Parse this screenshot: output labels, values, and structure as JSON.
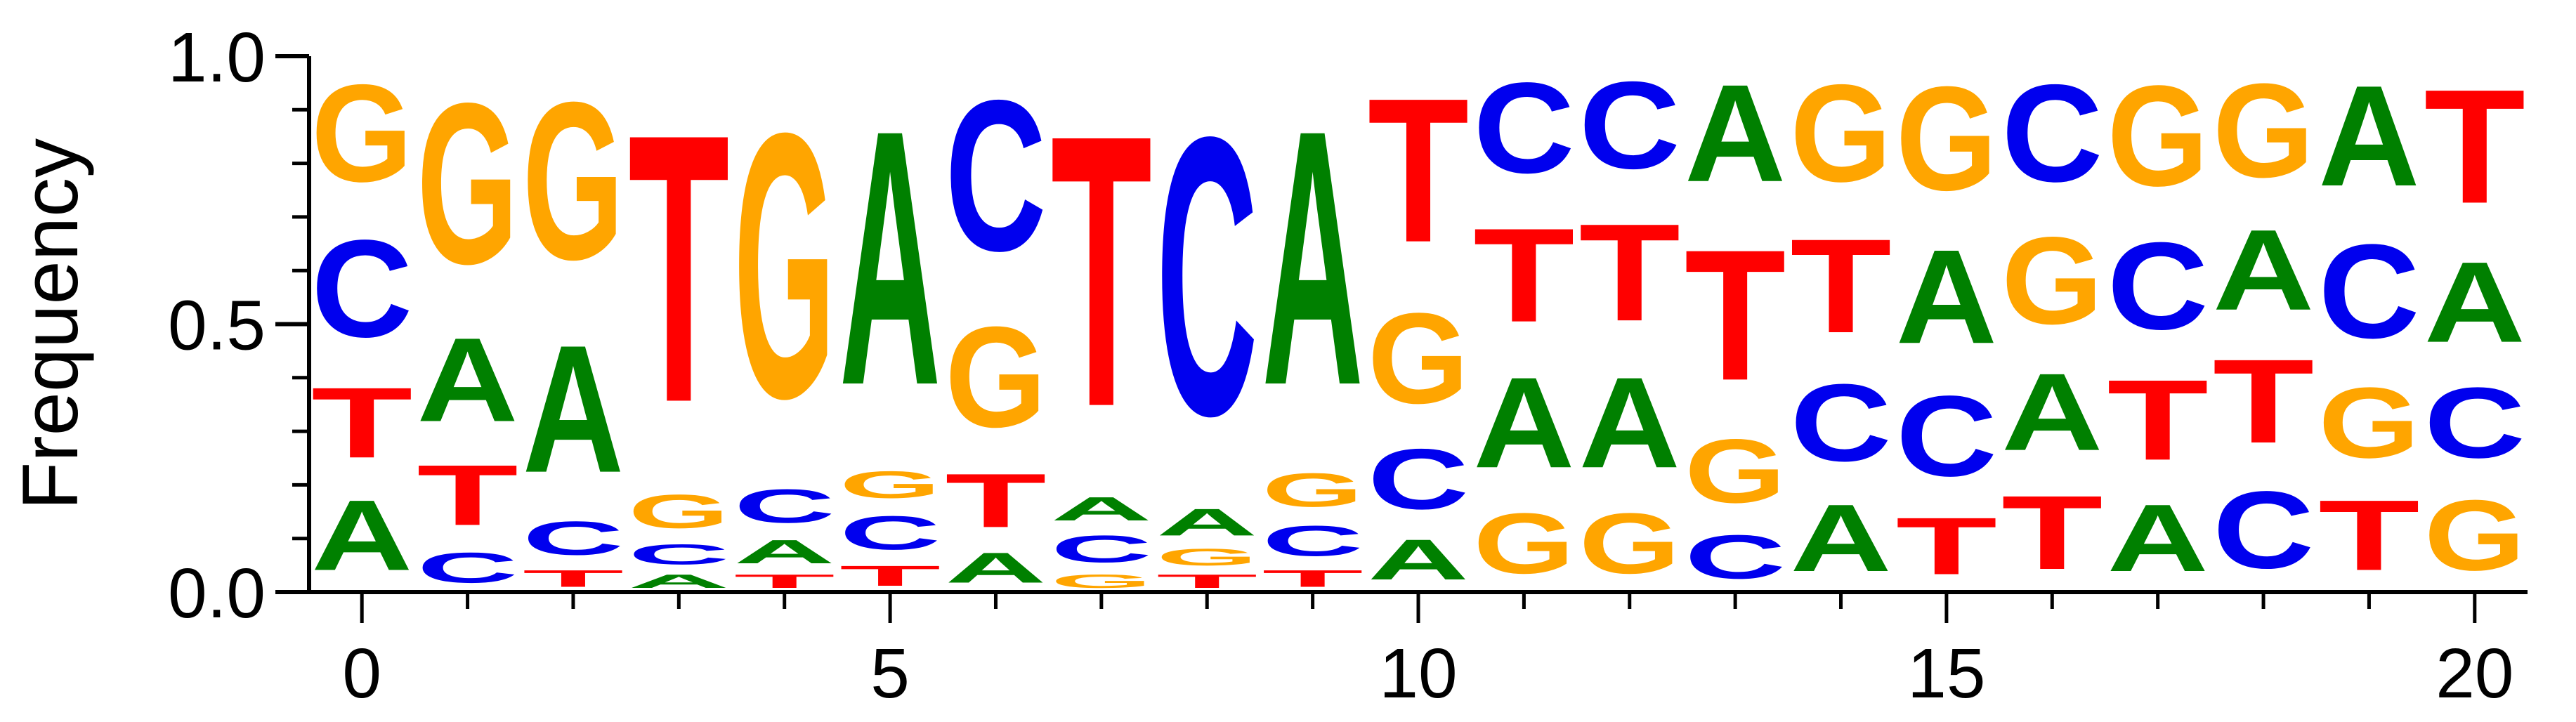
{
  "chart_data": {
    "type": "sequence-logo",
    "ylabel": "Frequency",
    "xlabel": "",
    "title": "",
    "ylim": [
      0,
      1
    ],
    "xlim": [
      -0.5,
      20.5
    ],
    "x_ticks": [
      "0",
      "5",
      "10",
      "15",
      "20"
    ],
    "x_tick_values": [
      0,
      5,
      10,
      15,
      20
    ],
    "y_ticks": [
      "0.0",
      "0.5",
      "1.0"
    ],
    "y_tick_values": [
      0,
      0.5,
      1.0
    ],
    "y_minor_ticks": [
      0.1,
      0.2,
      0.3,
      0.4,
      0.6,
      0.7,
      0.8,
      0.9
    ],
    "colors": {
      "A": "#008000",
      "C": "#0000ee",
      "G": "#ffa500",
      "T": "#ff0000"
    },
    "positions": [
      {
        "pos": 0,
        "stack": [
          {
            "base": "A",
            "freq": 0.21
          },
          {
            "base": "T",
            "freq": 0.21
          },
          {
            "base": "C",
            "freq": 0.29
          },
          {
            "base": "G",
            "freq": 0.29
          }
        ]
      },
      {
        "pos": 1,
        "stack": [
          {
            "base": "C",
            "freq": 0.09
          },
          {
            "base": "T",
            "freq": 0.18
          },
          {
            "base": "A",
            "freq": 0.25
          },
          {
            "base": "G",
            "freq": 0.48
          }
        ]
      },
      {
        "pos": 2,
        "stack": [
          {
            "base": "T",
            "freq": 0.05
          },
          {
            "base": "C",
            "freq": 0.1
          },
          {
            "base": "A",
            "freq": 0.38
          },
          {
            "base": "G",
            "freq": 0.47
          }
        ]
      },
      {
        "pos": 3,
        "stack": [
          {
            "base": "A",
            "freq": 0.04
          },
          {
            "base": "C",
            "freq": 0.06
          },
          {
            "base": "G",
            "freq": 0.1
          },
          {
            "base": "T",
            "freq": 0.8
          }
        ]
      },
      {
        "pos": 4,
        "stack": [
          {
            "base": "T",
            "freq": 0.04
          },
          {
            "base": "A",
            "freq": 0.07
          },
          {
            "base": "C",
            "freq": 0.1
          },
          {
            "base": "G",
            "freq": 0.79
          }
        ]
      },
      {
        "pos": 5,
        "stack": [
          {
            "base": "T",
            "freq": 0.06
          },
          {
            "base": "C",
            "freq": 0.1
          },
          {
            "base": "G",
            "freq": 0.08
          },
          {
            "base": "A",
            "freq": 0.76
          }
        ]
      },
      {
        "pos": 6,
        "stack": [
          {
            "base": "A",
            "freq": 0.09
          },
          {
            "base": "T",
            "freq": 0.16
          },
          {
            "base": "G",
            "freq": 0.3
          },
          {
            "base": "C",
            "freq": 0.45
          }
        ]
      },
      {
        "pos": 7,
        "stack": [
          {
            "base": "G",
            "freq": 0.04
          },
          {
            "base": "C",
            "freq": 0.08
          },
          {
            "base": "A",
            "freq": 0.07
          },
          {
            "base": "T",
            "freq": 0.81
          }
        ]
      },
      {
        "pos": 8,
        "stack": [
          {
            "base": "T",
            "freq": 0.04
          },
          {
            "base": "G",
            "freq": 0.05
          },
          {
            "base": "A",
            "freq": 0.08
          },
          {
            "base": "C",
            "freq": 0.83
          }
        ]
      },
      {
        "pos": 9,
        "stack": [
          {
            "base": "T",
            "freq": 0.05
          },
          {
            "base": "C",
            "freq": 0.09
          },
          {
            "base": "G",
            "freq": 0.1
          },
          {
            "base": "A",
            "freq": 0.76
          }
        ]
      },
      {
        "pos": 10,
        "stack": [
          {
            "base": "A",
            "freq": 0.12
          },
          {
            "base": "C",
            "freq": 0.18
          },
          {
            "base": "G",
            "freq": 0.27
          },
          {
            "base": "T",
            "freq": 0.43
          }
        ]
      },
      {
        "pos": 11,
        "stack": [
          {
            "base": "G",
            "freq": 0.18
          },
          {
            "base": "A",
            "freq": 0.27
          },
          {
            "base": "T",
            "freq": 0.28
          },
          {
            "base": "C",
            "freq": 0.27
          }
        ]
      },
      {
        "pos": 12,
        "stack": [
          {
            "base": "G",
            "freq": 0.18
          },
          {
            "base": "A",
            "freq": 0.27
          },
          {
            "base": "T",
            "freq": 0.29
          },
          {
            "base": "C",
            "freq": 0.26
          }
        ]
      },
      {
        "pos": 13,
        "stack": [
          {
            "base": "C",
            "freq": 0.13
          },
          {
            "base": "G",
            "freq": 0.19
          },
          {
            "base": "T",
            "freq": 0.39
          },
          {
            "base": "A",
            "freq": 0.29
          }
        ]
      },
      {
        "pos": 14,
        "stack": [
          {
            "base": "A",
            "freq": 0.2
          },
          {
            "base": "C",
            "freq": 0.23
          },
          {
            "base": "T",
            "freq": 0.28
          },
          {
            "base": "G",
            "freq": 0.29
          }
        ]
      },
      {
        "pos": 15,
        "stack": [
          {
            "base": "T",
            "freq": 0.17
          },
          {
            "base": "C",
            "freq": 0.24
          },
          {
            "base": "A",
            "freq": 0.28
          },
          {
            "base": "G",
            "freq": 0.31
          }
        ]
      },
      {
        "pos": 16,
        "stack": [
          {
            "base": "T",
            "freq": 0.22
          },
          {
            "base": "A",
            "freq": 0.23
          },
          {
            "base": "G",
            "freq": 0.26
          },
          {
            "base": "C",
            "freq": 0.29
          }
        ]
      },
      {
        "pos": 17,
        "stack": [
          {
            "base": "A",
            "freq": 0.2
          },
          {
            "base": "T",
            "freq": 0.24
          },
          {
            "base": "C",
            "freq": 0.26
          },
          {
            "base": "G",
            "freq": 0.3
          }
        ]
      },
      {
        "pos": 18,
        "stack": [
          {
            "base": "C",
            "freq": 0.23
          },
          {
            "base": "T",
            "freq": 0.25
          },
          {
            "base": "A",
            "freq": 0.24
          },
          {
            "base": "G",
            "freq": 0.28
          }
        ]
      },
      {
        "pos": 19,
        "stack": [
          {
            "base": "T",
            "freq": 0.21
          },
          {
            "base": "G",
            "freq": 0.21
          },
          {
            "base": "C",
            "freq": 0.28
          },
          {
            "base": "A",
            "freq": 0.3
          }
        ]
      },
      {
        "pos": 20,
        "stack": [
          {
            "base": "G",
            "freq": 0.21
          },
          {
            "base": "C",
            "freq": 0.21
          },
          {
            "base": "A",
            "freq": 0.24
          },
          {
            "base": "T",
            "freq": 0.34
          }
        ]
      }
    ]
  }
}
